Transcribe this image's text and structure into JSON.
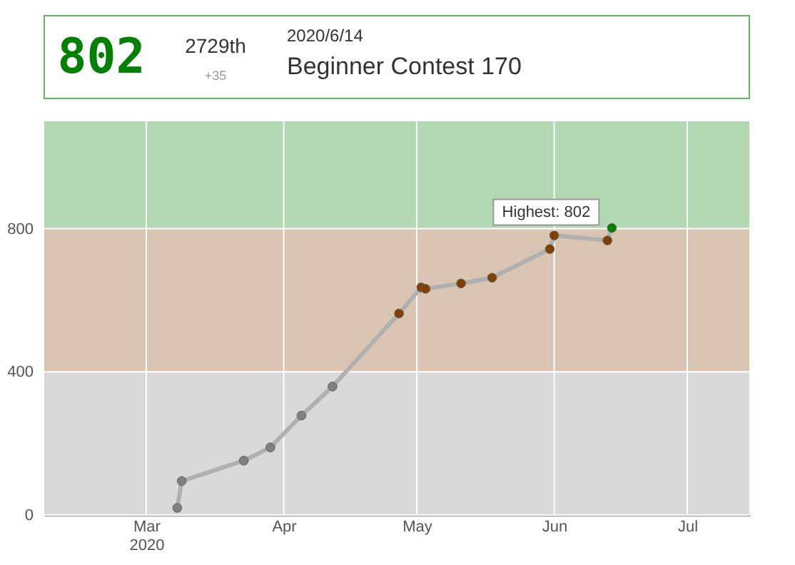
{
  "chart_data": {
    "type": "line",
    "title": "Beginner Contest 170",
    "subtitle": "2020/6/14",
    "series": [
      {
        "color": "#b0b0b0",
        "x": [
          "2020-03-08",
          "2020-03-09",
          "2020-03-23",
          "2020-03-29",
          "2020-04-05",
          "2020-04-12",
          "2020-04-27",
          "2020-05-02",
          "2020-05-03",
          "2020-05-11",
          "2020-05-18",
          "2020-05-31",
          "2020-06-01",
          "2020-06-13",
          "2020-06-14"
        ],
        "values": [
          20,
          95,
          152,
          189,
          278,
          359,
          563,
          636,
          632,
          647,
          663,
          743,
          781,
          767,
          802
        ],
        "colors": [
          "#808080",
          "#808080",
          "#808080",
          "#808080",
          "#808080",
          "#808080",
          "#804000",
          "#804000",
          "#804000",
          "#804000",
          "#804000",
          "#804000",
          "#804000",
          "#804000",
          "#008000"
        ]
      }
    ],
    "marker": "circle",
    "xlim": [
      "2020-02-07",
      "2020-07-15"
    ],
    "xticks": [
      {
        "value": "2020-03-01",
        "label": "Mar\n2020"
      },
      {
        "value": "2020-04-01",
        "label": "Apr"
      },
      {
        "value": "2020-05-01",
        "label": "May"
      },
      {
        "value": "2020-06-01",
        "label": "Jun"
      },
      {
        "value": "2020-07-01",
        "label": "Jul"
      }
    ],
    "ylim": [
      0,
      1100
    ],
    "yticks": [
      0,
      400,
      800
    ],
    "grid": true,
    "bands": [
      {
        "axis": "y",
        "from": 0,
        "to": 400,
        "color": "#d9d9d9"
      },
      {
        "axis": "y",
        "from": 400,
        "to": 800,
        "color": "#d9c5b2"
      },
      {
        "axis": "y",
        "from": 800,
        "to": 1100,
        "color": "#b2d9b2"
      }
    ],
    "annotations": [
      "802",
      "2729th",
      "+35",
      {
        "text": "Highest: 802",
        "x": "2020-06-14",
        "y": 802
      }
    ]
  }
}
